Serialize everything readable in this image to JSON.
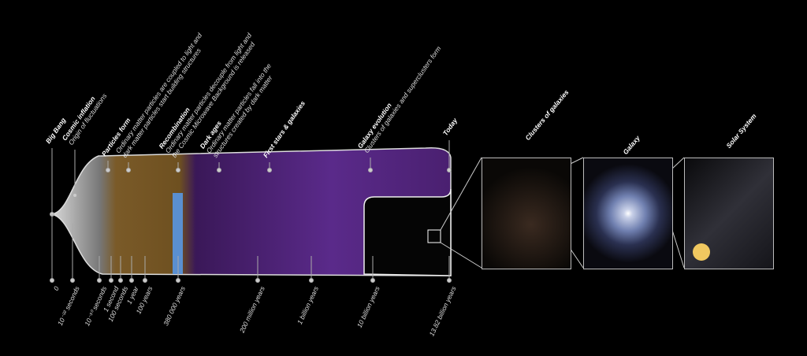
{
  "top_labels": [
    {
      "title": "Big Bang",
      "sub": ""
    },
    {
      "title": "Cosmic inflation",
      "sub": "Origin of fluctuations"
    },
    {
      "title": "Particles form",
      "sub": ""
    },
    {
      "title": "",
      "sub": "Ordinary matter particles are coupled to light and",
      "sub2": "dark matter particles start building structures"
    },
    {
      "title": "Recombination",
      "sub": "Ordinary matter particles decouple from light and",
      "sub2": "the Cosmic Microwave Background is released"
    },
    {
      "title": "Dark ages",
      "sub": "Ordinary matter particles fall into the",
      "sub2": "structures created by dark matter"
    },
    {
      "title": "First stars & galaxies",
      "sub": ""
    },
    {
      "title": "Galaxy evolution",
      "sub": "Clusters of galaxies and superclusters form"
    },
    {
      "title": "Today",
      "sub": ""
    }
  ],
  "bottom_labels": [
    "0",
    "10⁻³² seconds",
    "10⁻³⁰ seconds",
    "1 second",
    "100 seconds",
    "1 year",
    "100 years",
    "380 000 years",
    "200 million years",
    "1 billion years",
    "10 billion years",
    "13.82 billion years"
  ],
  "panels": [
    {
      "title": "Clusters of galaxies"
    },
    {
      "title": "Galaxy"
    },
    {
      "title": "Solar System"
    }
  ],
  "colors": {
    "early": "#8a8a8a",
    "plasma": "#7a5a20",
    "dark_ages": "#4a1f6e",
    "filaments": "#e0b050"
  }
}
